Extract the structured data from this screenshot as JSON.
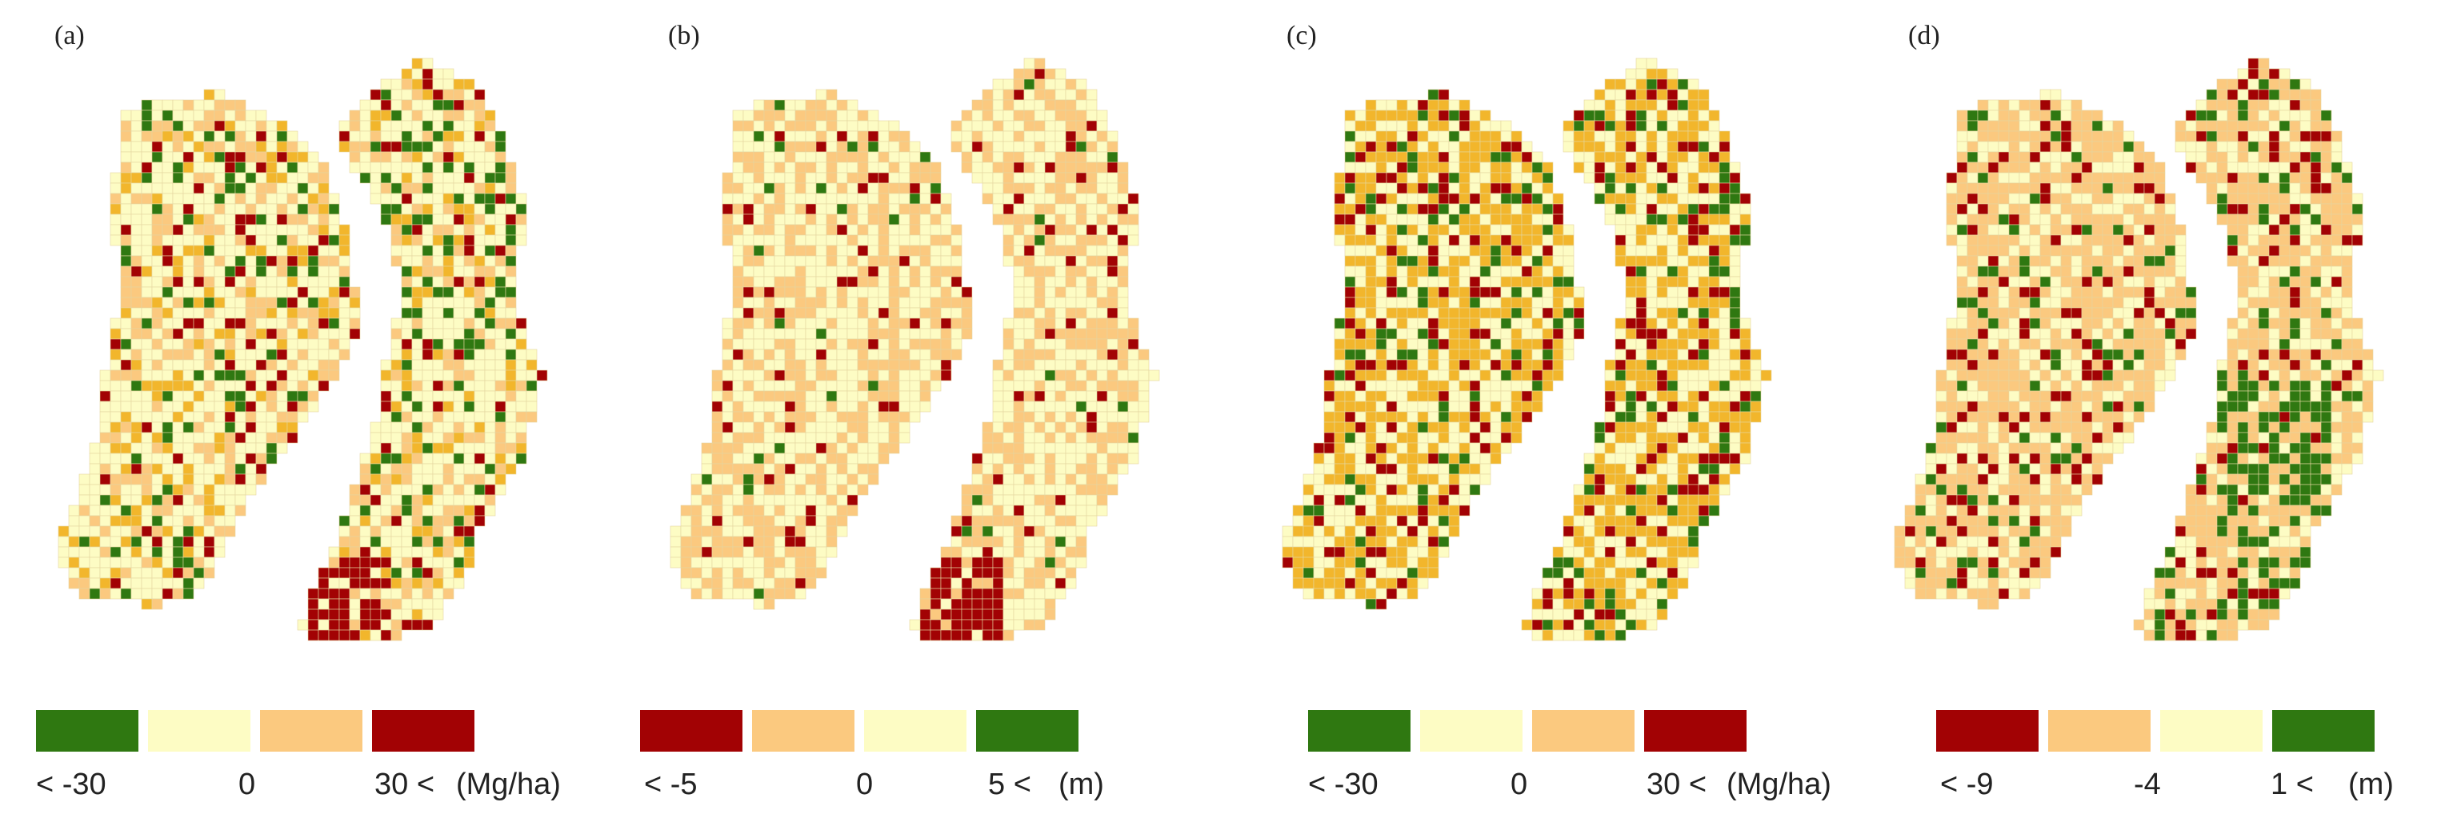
{
  "panels": [
    {
      "label": "(a)",
      "legend": {
        "colors": [
          "#2f7811",
          "#fdfcc4",
          "#fbc97f",
          "#a20204"
        ],
        "labels": [
          "< -30",
          "0",
          "30 <",
          "(Mg/ha)"
        ]
      }
    },
    {
      "label": "(b)",
      "legend": {
        "colors": [
          "#a20204",
          "#fbc97f",
          "#fdfcc4",
          "#2f7811"
        ],
        "labels": [
          "< -5",
          "0",
          "5 <",
          "(m)"
        ]
      }
    },
    {
      "label": "(c)",
      "legend": {
        "colors": [
          "#2f7811",
          "#fdfcc4",
          "#fbc97f",
          "#a20204"
        ],
        "labels": [
          "< -30",
          "0",
          "30 <",
          "(Mg/ha)"
        ]
      }
    },
    {
      "label": "(d)",
      "legend": {
        "colors": [
          "#a20204",
          "#fbc97f",
          "#fdfcc4",
          "#2f7811"
        ],
        "labels": [
          "< -9",
          "-4",
          "1 <",
          "(m)"
        ]
      }
    }
  ],
  "colors": {
    "green": "#2f7811",
    "pale_yellow": "#fdfcc4",
    "orange": "#f2b62c",
    "light_orange": "#fbc97f",
    "dark_red": "#a20204",
    "grid_line": "#e4d6a0"
  }
}
